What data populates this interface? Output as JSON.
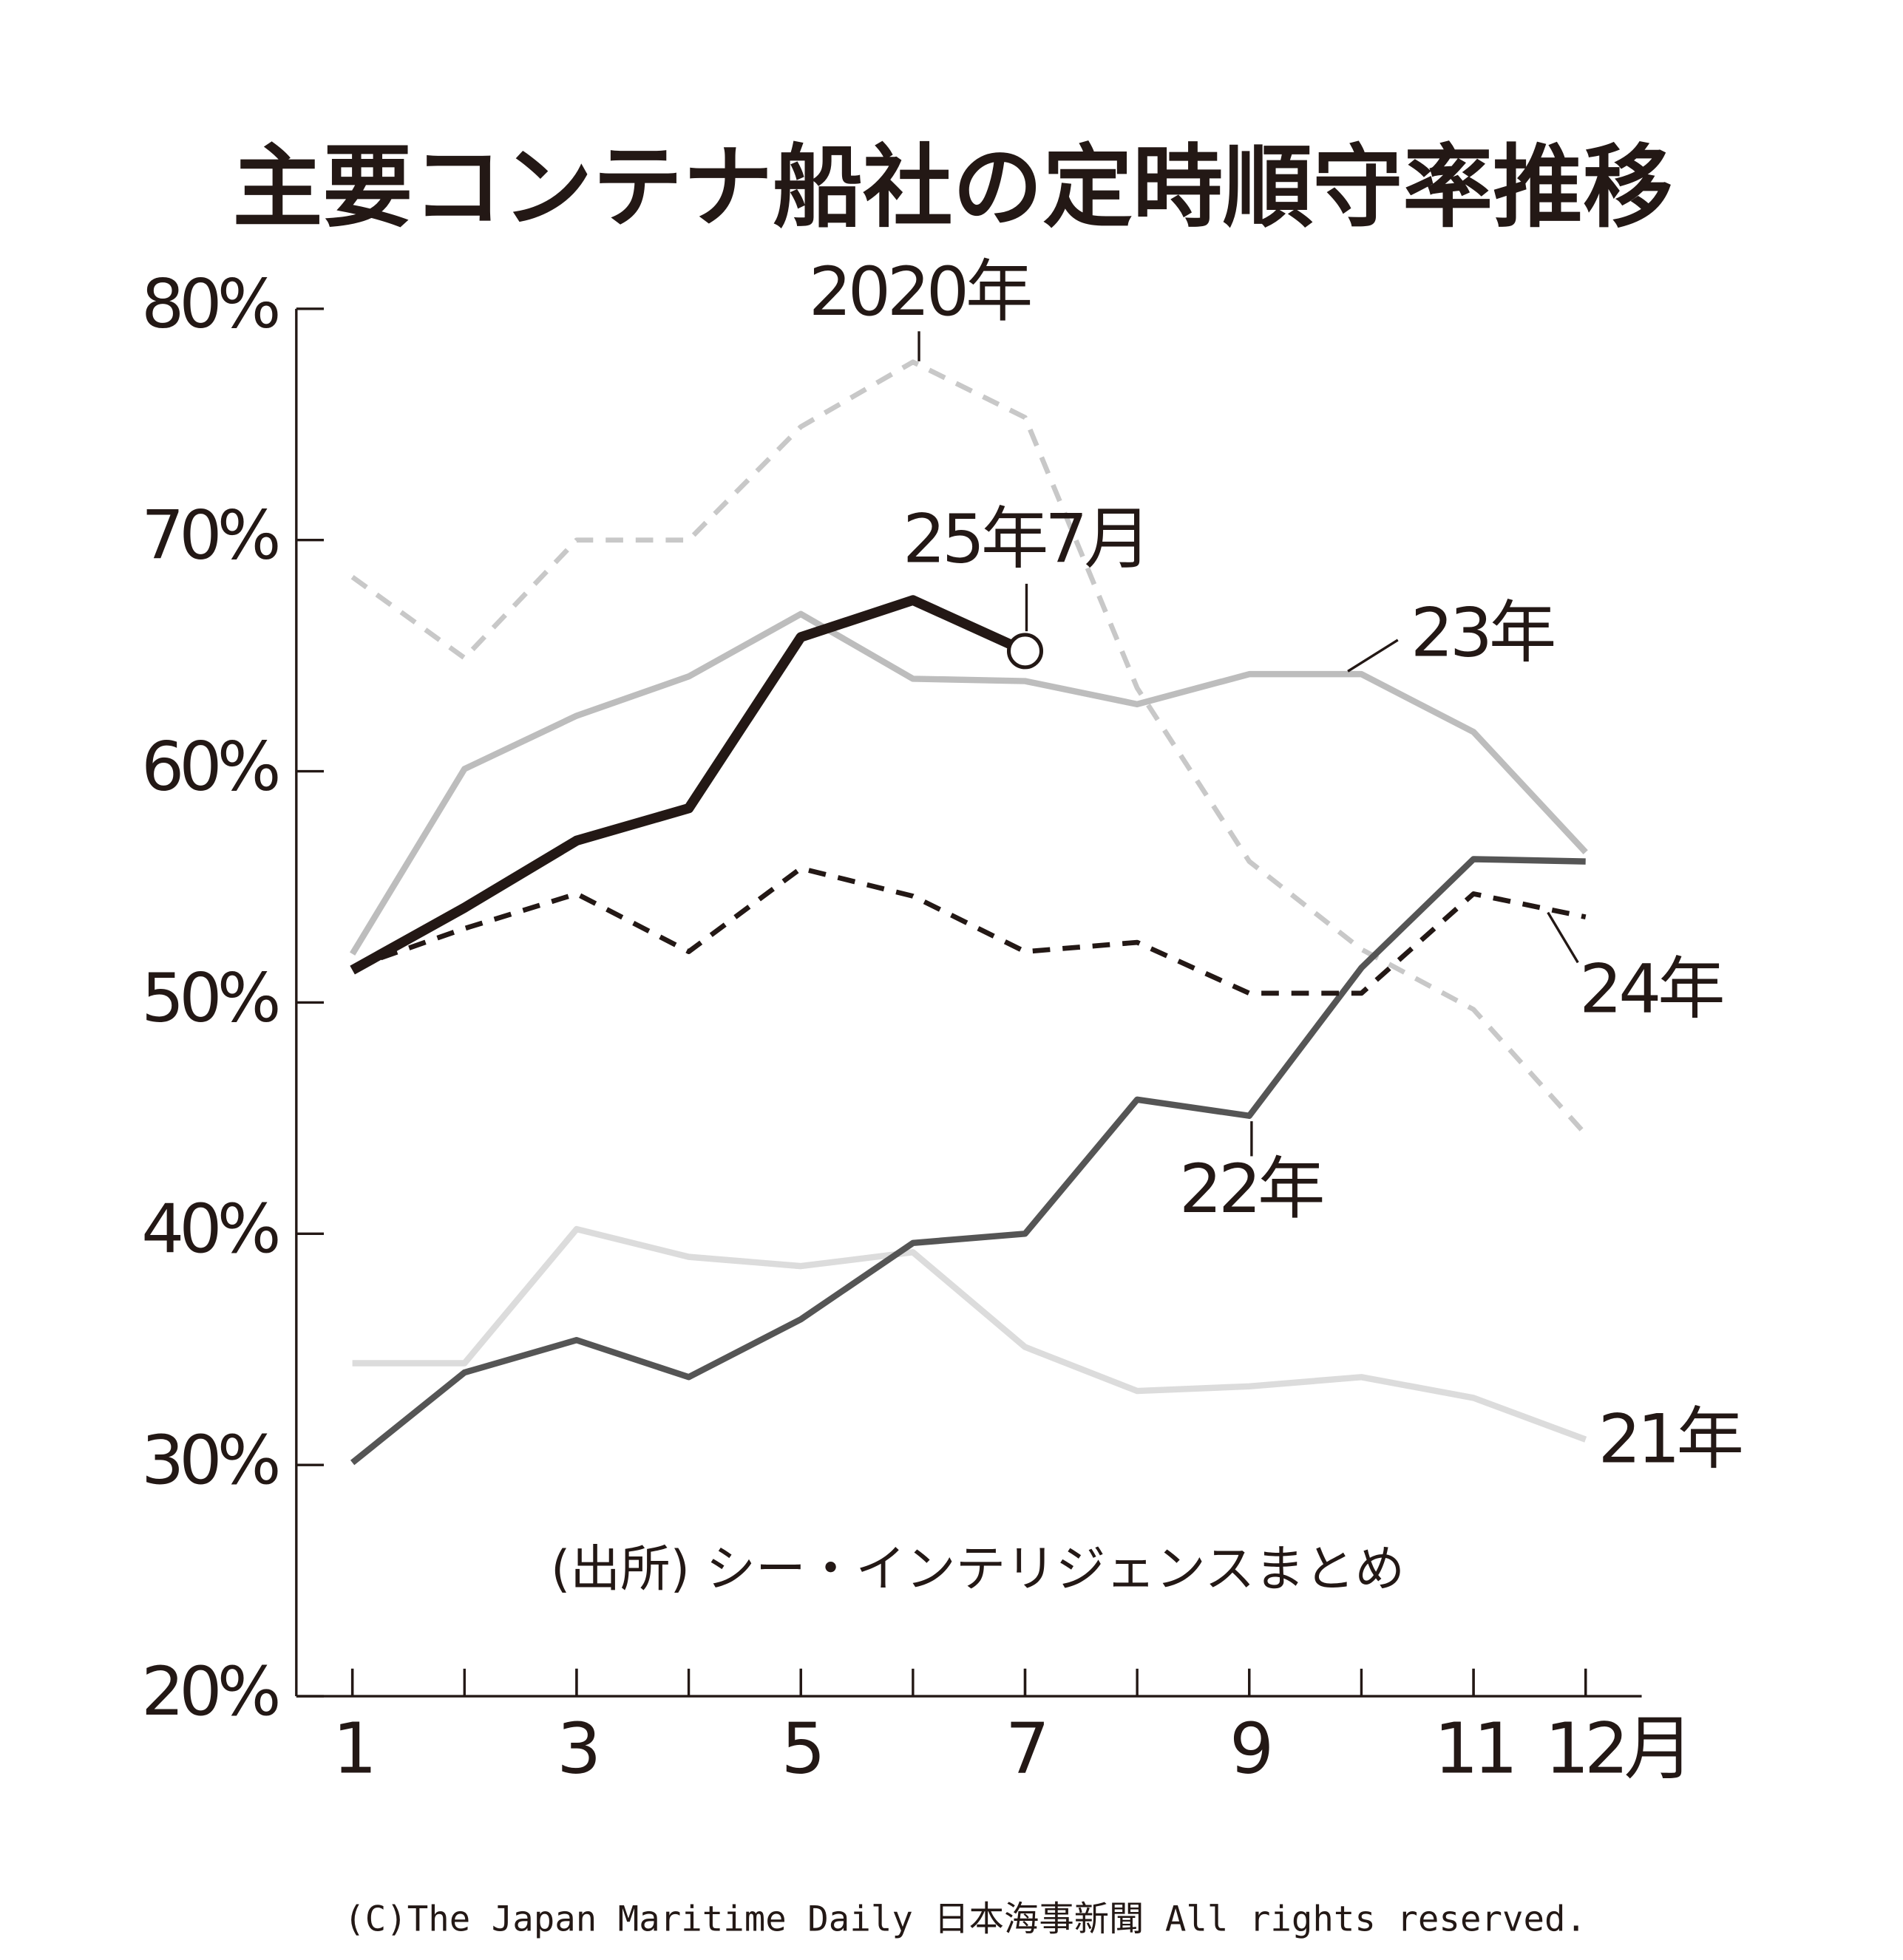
{
  "chart_data": {
    "type": "line",
    "title": "主要コンテナ船社の定時順守率推移",
    "source": "(出所) シー・インテリジェンスまとめ",
    "copyright": "(C)The Japan Maritime Daily 日本海事新聞 All rights reserved.",
    "x": [
      1,
      2,
      3,
      4,
      5,
      6,
      7,
      8,
      9,
      10,
      11,
      12
    ],
    "xlim": [
      0.5,
      12.5
    ],
    "xticks": [
      1,
      3,
      5,
      7,
      9,
      11,
      {
        "value": 12,
        "label": "12月"
      }
    ],
    "ylim": [
      20,
      80
    ],
    "yticks": [
      {
        "value": 20,
        "label": "20%"
      },
      {
        "value": 30,
        "label": "30%"
      },
      {
        "value": 40,
        "label": "40%"
      },
      {
        "value": 50,
        "label": "50%"
      },
      {
        "value": 60,
        "label": "60%"
      },
      {
        "value": 70,
        "label": "70%"
      },
      {
        "value": 80,
        "label": "80%"
      }
    ],
    "grid": false,
    "series": [
      {
        "name": "2020年",
        "color": "#c8c8c8",
        "style": "dashed",
        "values": [
          68.4,
          64.9,
          70.0,
          70.0,
          74.9,
          77.7,
          75.3,
          63.6,
          56.1,
          52.3,
          49.7,
          44.3
        ]
      },
      {
        "name": "21年",
        "color": "#dcdcdc",
        "style": "solid",
        "values": [
          34.4,
          34.4,
          40.2,
          39.0,
          38.6,
          39.2,
          35.1,
          33.2,
          33.4,
          33.8,
          32.9,
          31.1
        ]
      },
      {
        "name": "22年",
        "color": "#555555",
        "style": "solid",
        "values": [
          30.1,
          34.0,
          35.4,
          33.8,
          36.3,
          39.6,
          40.0,
          45.8,
          45.1,
          51.5,
          56.2,
          56.1
        ]
      },
      {
        "name": "23年",
        "color": "#bdbdbd",
        "style": "solid",
        "values": [
          52.1,
          60.1,
          62.4,
          64.1,
          66.8,
          64.0,
          63.9,
          62.9,
          64.2,
          64.2,
          61.7,
          56.5
        ]
      },
      {
        "name": "24年",
        "color": "#231815",
        "style": "dashed",
        "values": [
          51.5,
          53.2,
          54.7,
          52.2,
          55.8,
          54.6,
          52.2,
          52.6,
          50.4,
          50.4,
          54.7,
          53.7
        ]
      },
      {
        "name": "25年7月",
        "color": "#231815",
        "style": "thick",
        "values": [
          51.4,
          54.1,
          57.0,
          58.4,
          65.8,
          67.4,
          65.2,
          null,
          null,
          null,
          null,
          null
        ]
      }
    ]
  }
}
